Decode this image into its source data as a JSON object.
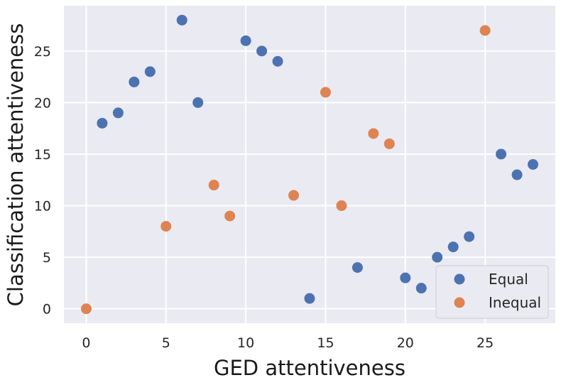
{
  "chart_data": {
    "type": "scatter",
    "title": "",
    "xlabel": "GED attentiveness",
    "ylabel": "Classification attentiveness",
    "xlim": [
      -1.4,
      29.4
    ],
    "ylim": [
      -1.4,
      29.4
    ],
    "x_ticks": [
      0,
      5,
      10,
      15,
      20,
      25
    ],
    "y_ticks": [
      0,
      5,
      10,
      15,
      20,
      25
    ],
    "grid": true,
    "legend_position": "lower-right",
    "series": [
      {
        "name": "Equal",
        "color": "#4c72b0",
        "points": [
          [
            1,
            18
          ],
          [
            2,
            19
          ],
          [
            3,
            22
          ],
          [
            4,
            23
          ],
          [
            6,
            28
          ],
          [
            7,
            20
          ],
          [
            10,
            26
          ],
          [
            11,
            25
          ],
          [
            12,
            24
          ],
          [
            14,
            1
          ],
          [
            17,
            4
          ],
          [
            20,
            3
          ],
          [
            21,
            2
          ],
          [
            22,
            5
          ],
          [
            23,
            6
          ],
          [
            24,
            7
          ],
          [
            26,
            15
          ],
          [
            27,
            13
          ],
          [
            28,
            14
          ]
        ]
      },
      {
        "name": "Inequal",
        "color": "#dd8452",
        "points": [
          [
            0,
            0
          ],
          [
            5,
            8
          ],
          [
            8,
            12
          ],
          [
            9,
            9
          ],
          [
            13,
            11
          ],
          [
            15,
            21
          ],
          [
            16,
            10
          ],
          [
            18,
            17
          ],
          [
            19,
            16
          ],
          [
            25,
            27
          ]
        ]
      }
    ]
  }
}
